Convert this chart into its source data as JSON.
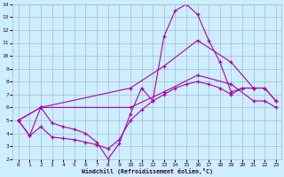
{
  "xlabel": "Windchill (Refroidissement éolien,°C)",
  "bg_color": "#cceeff",
  "grid_color": "#aabbcc",
  "line_color": "#aa00aa",
  "x_min": 0,
  "x_max": 23,
  "y_min": 2,
  "y_max": 14,
  "series1_x": [
    0,
    1,
    2,
    3,
    4,
    5,
    6,
    7,
    8,
    9,
    10,
    11,
    12,
    13,
    14,
    15,
    16,
    17,
    18,
    19,
    20,
    21
  ],
  "series1_y": [
    5.0,
    3.8,
    6.0,
    4.8,
    4.5,
    4.3,
    4.0,
    3.3,
    2.0,
    3.2,
    5.5,
    7.5,
    6.5,
    11.5,
    13.5,
    14.0,
    13.2,
    11.2,
    9.5,
    7.2,
    7.5,
    7.5
  ],
  "series2_x": [
    0,
    1,
    2,
    3,
    4,
    5,
    6,
    7,
    8,
    9,
    10,
    11,
    12,
    13,
    14,
    15,
    16,
    17,
    18,
    19,
    20,
    21,
    22,
    23
  ],
  "series2_y": [
    5.0,
    3.8,
    4.5,
    3.7,
    3.6,
    3.5,
    3.3,
    3.1,
    2.8,
    3.5,
    5.0,
    5.8,
    6.5,
    7.0,
    7.5,
    7.8,
    8.0,
    7.8,
    7.5,
    7.0,
    7.5,
    7.5,
    7.5,
    6.5
  ],
  "series3_x": [
    0,
    2,
    10,
    13,
    16,
    19,
    21,
    22,
    23
  ],
  "series3_y": [
    5.0,
    6.0,
    7.5,
    9.2,
    11.2,
    9.5,
    7.5,
    7.5,
    6.5
  ],
  "series4_x": [
    0,
    2,
    10,
    13,
    16,
    19,
    21,
    22,
    23
  ],
  "series4_y": [
    5.0,
    6.0,
    6.0,
    7.2,
    8.5,
    7.8,
    6.5,
    6.5,
    6.0
  ]
}
